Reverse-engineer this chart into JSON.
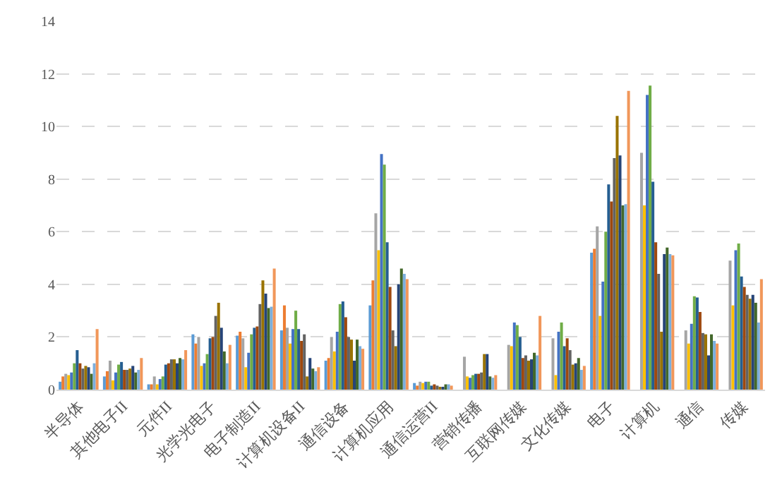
{
  "chart_data": {
    "type": "bar",
    "categories": [
      "半导体",
      "其他电子II",
      "元件II",
      "光学光电子",
      "电子制造II",
      "计算机设备II",
      "通信设备",
      "计算机应用",
      "通信运营II",
      "营销传播",
      "互联网传媒",
      "文化传媒",
      "电子",
      "计算机",
      "通信",
      "传媒"
    ],
    "ylim": [
      0,
      14
    ],
    "yticks": [
      0,
      2,
      4,
      6,
      8,
      10,
      12,
      14
    ],
    "grid": "y",
    "series": [
      {
        "color": "#5b9bd5",
        "values": [
          0.3,
          0.5,
          0.2,
          2.1,
          2.05,
          2.25,
          1.1,
          3.2,
          0.25,
          null,
          null,
          null,
          5.2,
          null,
          null,
          null
        ]
      },
      {
        "color": "#ed7d31",
        "values": [
          0.5,
          0.7,
          0.2,
          1.75,
          2.2,
          3.2,
          1.2,
          4.15,
          0.15,
          null,
          null,
          null,
          5.35,
          null,
          null,
          null
        ]
      },
      {
        "color": "#a5a5a5",
        "values": [
          0.6,
          1.1,
          0.5,
          2.0,
          1.95,
          2.35,
          2.0,
          6.7,
          0.3,
          1.25,
          1.7,
          1.95,
          6.2,
          9.0,
          2.25,
          4.9
        ]
      },
      {
        "color": "#ffc000",
        "values": [
          0.55,
          0.35,
          0.2,
          0.9,
          0.85,
          1.75,
          1.45,
          5.3,
          0.25,
          0.5,
          1.65,
          0.55,
          2.8,
          7.0,
          1.75,
          3.2
        ]
      },
      {
        "color": "#4472c4",
        "values": [
          0.65,
          0.65,
          0.4,
          1.0,
          1.4,
          2.3,
          2.2,
          8.95,
          0.3,
          0.45,
          2.55,
          2.2,
          4.1,
          11.2,
          2.5,
          5.3
        ]
      },
      {
        "color": "#70ad47",
        "values": [
          1.0,
          0.95,
          0.5,
          1.35,
          2.1,
          3.0,
          3.25,
          8.55,
          0.3,
          0.55,
          2.45,
          2.55,
          6.0,
          11.55,
          3.55,
          5.55
        ]
      },
      {
        "color": "#255e91",
        "values": [
          1.5,
          1.05,
          0.95,
          1.95,
          2.35,
          2.3,
          3.35,
          5.6,
          0.15,
          0.6,
          2.0,
          1.65,
          7.8,
          7.9,
          3.5,
          4.3
        ]
      },
      {
        "color": "#9e480e",
        "values": [
          1.0,
          0.75,
          1.0,
          2.0,
          2.4,
          1.85,
          2.75,
          3.9,
          0.2,
          0.6,
          1.2,
          1.95,
          7.15,
          5.6,
          2.95,
          3.9
        ]
      },
      {
        "color": "#636363",
        "values": [
          0.8,
          0.75,
          1.15,
          2.8,
          3.25,
          2.1,
          2.0,
          2.25,
          0.15,
          0.65,
          1.3,
          1.5,
          8.8,
          4.4,
          2.15,
          3.6
        ]
      },
      {
        "color": "#997300",
        "values": [
          0.9,
          0.8,
          1.15,
          3.3,
          4.15,
          0.5,
          1.9,
          1.65,
          0.1,
          1.35,
          1.1,
          0.95,
          10.4,
          2.2,
          2.1,
          3.45
        ]
      },
      {
        "color": "#264478",
        "values": [
          0.85,
          0.9,
          1.0,
          2.35,
          3.65,
          1.2,
          1.1,
          4.0,
          0.1,
          1.35,
          1.15,
          1.0,
          8.9,
          5.15,
          1.3,
          3.6
        ]
      },
      {
        "color": "#43682b",
        "values": [
          0.6,
          0.65,
          1.2,
          1.45,
          3.1,
          0.8,
          1.9,
          4.6,
          0.2,
          0.5,
          1.4,
          1.2,
          7.0,
          5.4,
          2.1,
          3.3
        ]
      },
      {
        "color": "#7cafdd",
        "values": [
          1.0,
          0.75,
          1.15,
          1.0,
          3.15,
          0.7,
          1.65,
          4.4,
          0.2,
          0.45,
          1.3,
          0.75,
          7.05,
          5.15,
          1.85,
          2.55
        ]
      },
      {
        "color": "#f1975a",
        "values": [
          2.3,
          1.2,
          1.5,
          1.7,
          4.6,
          0.85,
          1.55,
          4.2,
          0.15,
          0.55,
          2.8,
          0.9,
          11.35,
          5.1,
          1.75,
          4.2
        ]
      }
    ]
  }
}
